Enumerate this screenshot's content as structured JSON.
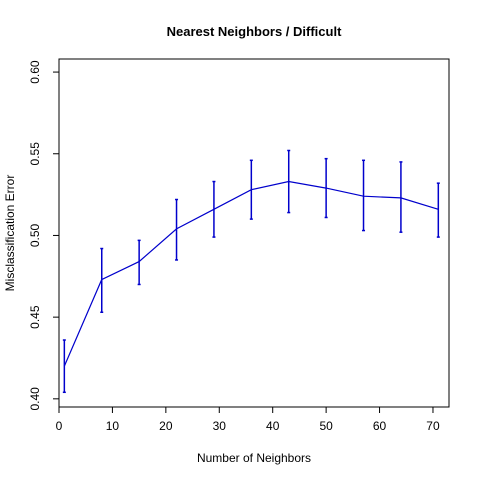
{
  "chart_data": {
    "type": "line",
    "title": "Nearest Neighbors / Difficult",
    "xlabel": "Number of Neighbors",
    "ylabel": "Misclassification Error",
    "xlim": [
      0,
      73
    ],
    "ylim": [
      0.395,
      0.608
    ],
    "x_ticks": [
      0,
      10,
      20,
      30,
      40,
      50,
      60,
      70
    ],
    "y_ticks": [
      0.4,
      0.45,
      0.5,
      0.55,
      0.6
    ],
    "y_tick_labels": [
      "0.40",
      "0.45",
      "0.50",
      "0.55",
      "0.60"
    ],
    "grid": false,
    "legend": "none",
    "series": [
      {
        "color": "#0000cc",
        "x": [
          1,
          8,
          15,
          22,
          29,
          36,
          43,
          50,
          57,
          64,
          71
        ],
        "y": [
          0.42,
          0.473,
          0.484,
          0.504,
          0.516,
          0.528,
          0.533,
          0.529,
          0.524,
          0.523,
          0.516
        ],
        "err_low": [
          0.404,
          0.453,
          0.47,
          0.485,
          0.499,
          0.51,
          0.514,
          0.511,
          0.503,
          0.502,
          0.499
        ],
        "err_high": [
          0.436,
          0.492,
          0.497,
          0.522,
          0.533,
          0.546,
          0.552,
          0.547,
          0.546,
          0.545,
          0.532
        ]
      }
    ]
  }
}
